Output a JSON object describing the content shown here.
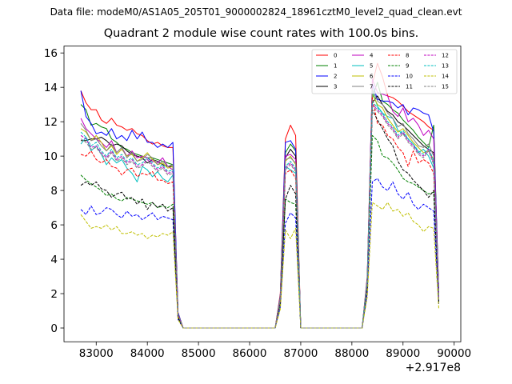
{
  "suptitle": "Data file: modeM0/AS1A05_205T01_9000002824_18961cztM0_level2_quad_clean.evt",
  "chart_data": {
    "type": "line",
    "title": "Quadrant 2 module wise count rates with 100.0s bins.",
    "xlabel": "",
    "ylabel": "",
    "x_offset_label": "+2.917e8",
    "xlim": [
      82370,
      90130
    ],
    "ylim": [
      -0.8,
      16.4
    ],
    "xticks": [
      83000,
      84000,
      85000,
      86000,
      87000,
      88000,
      89000,
      90000
    ],
    "yticks": [
      0,
      2,
      4,
      6,
      8,
      10,
      12,
      14,
      16
    ],
    "legend_position": "top-right",
    "x": [
      82700,
      82800,
      82900,
      83000,
      83100,
      83200,
      83300,
      83400,
      83500,
      83600,
      83700,
      83800,
      83900,
      84000,
      84100,
      84200,
      84300,
      84400,
      84500,
      84600,
      84700,
      86500,
      86600,
      86700,
      86800,
      86900,
      87000,
      87100,
      88200,
      88300,
      88400,
      88500,
      88600,
      88700,
      88800,
      88900,
      89000,
      89100,
      89200,
      89300,
      89400,
      89500,
      89600,
      89700
    ],
    "series": [
      {
        "name": "0",
        "color": "#ff0000",
        "dash": "solid",
        "values": [
          13.8,
          13.1,
          12.7,
          12.7,
          12.1,
          11.9,
          12.2,
          11.8,
          11.7,
          11.5,
          11.6,
          11.3,
          11.2,
          10.9,
          10.7,
          10.8,
          10.6,
          10.5,
          10.5,
          0.9,
          0.0,
          0.0,
          2.0,
          11.0,
          11.8,
          11.2,
          0.0,
          0.0,
          0.0,
          3.0,
          14.2,
          15.4,
          14.6,
          13.5,
          13.4,
          13.2,
          12.9,
          12.6,
          12.4,
          12.2,
          12.0,
          11.7,
          11.5,
          2.0
        ]
      },
      {
        "name": "1",
        "color": "#008000",
        "dash": "solid",
        "values": [
          13.0,
          12.7,
          11.8,
          11.9,
          11.7,
          11.6,
          11.0,
          10.8,
          10.5,
          10.4,
          10.2,
          10.1,
          10.0,
          9.9,
          9.9,
          9.8,
          9.7,
          9.6,
          9.5,
          0.8,
          0.0,
          0.0,
          1.8,
          10.2,
          10.7,
          10.3,
          0.0,
          0.0,
          0.0,
          2.8,
          13.4,
          14.3,
          13.2,
          13.0,
          12.7,
          12.5,
          12.1,
          11.8,
          11.5,
          11.1,
          10.8,
          10.5,
          11.8,
          1.9
        ]
      },
      {
        "name": "2",
        "color": "#0000ff",
        "dash": "solid",
        "values": [
          13.8,
          12.3,
          11.9,
          11.3,
          11.4,
          11.2,
          11.6,
          11.0,
          11.2,
          10.9,
          11.5,
          11.0,
          11.4,
          10.8,
          10.8,
          10.5,
          10.7,
          10.5,
          10.8,
          0.9,
          0.0,
          0.0,
          1.9,
          10.8,
          10.9,
          10.4,
          0.0,
          0.0,
          0.0,
          2.9,
          14.2,
          13.3,
          13.2,
          13.2,
          13.1,
          12.8,
          13.0,
          12.4,
          12.8,
          12.7,
          12.5,
          12.4,
          11.4,
          2.0
        ]
      },
      {
        "name": "3",
        "color": "#000000",
        "dash": "solid",
        "values": [
          10.9,
          10.9,
          11.0,
          11.0,
          11.1,
          10.9,
          10.6,
          10.7,
          10.6,
          10.3,
          10.1,
          10.0,
          9.9,
          9.6,
          9.8,
          9.7,
          9.5,
          9.4,
          9.4,
          0.8,
          0.0,
          0.0,
          1.8,
          9.9,
          10.4,
          10.0,
          0.0,
          0.0,
          0.0,
          2.7,
          13.1,
          13.5,
          13.0,
          12.6,
          12.4,
          12.0,
          11.8,
          11.5,
          11.2,
          10.9,
          10.6,
          10.4,
          10.2,
          1.8
        ]
      },
      {
        "name": "4",
        "color": "#bf00bf",
        "dash": "solid",
        "values": [
          12.2,
          11.6,
          11.3,
          11.0,
          10.8,
          10.5,
          10.9,
          10.2,
          10.5,
          10.0,
          10.3,
          9.9,
          10.0,
          9.9,
          9.7,
          9.6,
          9.9,
          9.4,
          9.2,
          0.8,
          0.0,
          0.0,
          1.8,
          10.0,
          10.1,
          9.8,
          0.0,
          0.0,
          0.0,
          2.8,
          14.5,
          13.7,
          13.6,
          13.5,
          12.6,
          12.3,
          12.8,
          12.0,
          12.2,
          11.8,
          11.2,
          11.5,
          11.0,
          1.9
        ]
      },
      {
        "name": "5",
        "color": "#00bfbf",
        "dash": "solid",
        "values": [
          10.7,
          11.1,
          10.3,
          10.6,
          10.1,
          9.5,
          9.9,
          9.6,
          9.8,
          9.3,
          9.0,
          8.5,
          9.4,
          9.2,
          8.8,
          9.1,
          8.7,
          8.5,
          8.9,
          0.7,
          0.0,
          0.0,
          1.7,
          9.4,
          9.2,
          9.0,
          0.0,
          0.0,
          0.0,
          2.6,
          13.8,
          12.9,
          12.5,
          12.3,
          12.2,
          11.5,
          11.3,
          11.0,
          10.7,
          10.2,
          10.4,
          10.0,
          9.3,
          1.7
        ]
      },
      {
        "name": "6",
        "color": "#bfbf00",
        "dash": "solid",
        "values": [
          11.6,
          11.4,
          10.9,
          11.2,
          10.8,
          10.3,
          10.6,
          10.1,
          10.4,
          10.0,
          10.1,
          9.7,
          9.9,
          10.2,
          9.8,
          9.5,
          9.6,
          9.3,
          9.4,
          0.8,
          0.0,
          0.0,
          1.8,
          9.7,
          10.0,
          9.5,
          0.0,
          0.0,
          0.0,
          2.8,
          13.6,
          13.0,
          12.8,
          12.2,
          11.8,
          11.4,
          11.6,
          11.2,
          10.8,
          10.5,
          10.2,
          10.3,
          9.8,
          1.8
        ]
      },
      {
        "name": "7",
        "color": "#808080",
        "dash": "solid",
        "values": [
          11.9,
          11.5,
          10.9,
          11.0,
          10.6,
          10.3,
          10.7,
          10.2,
          10.5,
          9.9,
          10.2,
          9.7,
          9.8,
          10.1,
          9.9,
          9.5,
          9.7,
          9.4,
          9.5,
          0.8,
          0.0,
          0.0,
          1.8,
          9.8,
          9.9,
          9.6,
          0.0,
          0.0,
          0.0,
          2.8,
          13.9,
          13.2,
          13.0,
          12.5,
          12.2,
          11.7,
          11.9,
          11.3,
          11.0,
          10.6,
          10.5,
          10.7,
          10.0,
          1.8
        ]
      },
      {
        "name": "8",
        "color": "#ff0000",
        "dash": "dashed",
        "values": [
          10.1,
          10.0,
          10.3,
          9.8,
          9.6,
          9.8,
          9.4,
          9.3,
          8.9,
          9.2,
          9.3,
          8.8,
          9.0,
          8.9,
          9.1,
          8.6,
          8.6,
          8.4,
          8.5,
          0.7,
          0.0,
          0.0,
          1.6,
          9.0,
          9.2,
          8.7,
          0.0,
          0.0,
          0.0,
          2.5,
          13.4,
          11.9,
          11.8,
          11.2,
          11.0,
          10.5,
          10.2,
          9.4,
          10.3,
          9.6,
          9.8,
          9.6,
          9.0,
          1.6
        ]
      },
      {
        "name": "9",
        "color": "#008000",
        "dash": "dashed",
        "values": [
          8.9,
          8.6,
          8.4,
          8.2,
          8.0,
          7.7,
          7.8,
          7.5,
          7.4,
          7.6,
          7.5,
          7.4,
          7.3,
          7.2,
          7.3,
          7.0,
          7.1,
          7.0,
          7.2,
          0.6,
          0.0,
          0.0,
          1.4,
          7.5,
          7.3,
          7.2,
          0.0,
          0.0,
          0.0,
          2.3,
          11.2,
          10.9,
          10.0,
          9.9,
          9.6,
          9.2,
          8.7,
          8.5,
          8.4,
          8.2,
          8.0,
          7.8,
          7.9,
          1.5
        ]
      },
      {
        "name": "10",
        "color": "#0000ff",
        "dash": "dashed",
        "values": [
          6.9,
          6.6,
          7.1,
          6.6,
          6.7,
          7.0,
          6.9,
          6.6,
          6.4,
          6.8,
          6.5,
          6.6,
          6.3,
          6.5,
          6.7,
          6.3,
          6.5,
          6.4,
          6.3,
          0.5,
          0.0,
          0.0,
          1.2,
          6.1,
          6.7,
          6.4,
          0.0,
          0.0,
          0.0,
          2.0,
          8.5,
          8.7,
          8.2,
          8.0,
          8.5,
          7.8,
          7.5,
          7.9,
          7.2,
          6.9,
          7.2,
          7.0,
          6.8,
          1.4
        ]
      },
      {
        "name": "11",
        "color": "#000000",
        "dash": "dashed",
        "values": [
          8.3,
          8.5,
          8.3,
          8.5,
          8.1,
          8.0,
          7.6,
          7.8,
          7.9,
          7.5,
          7.6,
          7.2,
          7.5,
          6.9,
          7.3,
          7.0,
          7.2,
          6.8,
          7.0,
          0.6,
          0.0,
          0.0,
          1.5,
          7.5,
          8.3,
          7.8,
          0.0,
          0.0,
          0.0,
          2.3,
          12.7,
          12.1,
          11.6,
          11.0,
          10.6,
          9.7,
          9.2,
          9.0,
          8.6,
          8.3,
          8.0,
          7.6,
          8.0,
          1.5
        ]
      },
      {
        "name": "12",
        "color": "#bf00bf",
        "dash": "dashed",
        "values": [
          11.2,
          11.0,
          10.5,
          10.6,
          10.2,
          9.9,
          10.3,
          9.8,
          10.0,
          9.6,
          9.8,
          9.4,
          9.5,
          9.8,
          9.5,
          9.2,
          9.4,
          9.0,
          9.1,
          0.8,
          0.0,
          0.0,
          1.7,
          9.3,
          9.6,
          9.2,
          0.0,
          0.0,
          0.0,
          2.7,
          13.0,
          12.7,
          12.4,
          11.9,
          11.6,
          11.1,
          11.4,
          10.9,
          10.6,
          10.2,
          10.0,
          10.4,
          9.6,
          1.7
        ]
      },
      {
        "name": "13",
        "color": "#00bfbf",
        "dash": "dashed",
        "values": [
          11.4,
          11.1,
          10.6,
          10.8,
          10.3,
          10.0,
          10.4,
          9.9,
          10.1,
          9.7,
          9.9,
          9.5,
          9.6,
          9.9,
          9.6,
          9.3,
          9.5,
          9.1,
          9.2,
          0.8,
          0.0,
          0.0,
          1.7,
          9.4,
          9.7,
          9.3,
          0.0,
          0.0,
          0.0,
          2.7,
          13.2,
          12.8,
          12.5,
          12.0,
          11.7,
          11.2,
          11.5,
          11.0,
          10.7,
          10.3,
          10.1,
          10.5,
          9.7,
          1.7
        ]
      },
      {
        "name": "14",
        "color": "#bfbf00",
        "dash": "dashed",
        "values": [
          6.6,
          6.2,
          5.8,
          5.9,
          5.8,
          6.0,
          5.7,
          5.9,
          5.5,
          5.5,
          5.6,
          5.4,
          5.5,
          5.2,
          5.4,
          5.3,
          5.5,
          5.4,
          5.6,
          0.5,
          0.0,
          0.0,
          1.1,
          5.7,
          5.2,
          5.8,
          0.0,
          0.0,
          0.0,
          1.8,
          7.3,
          7.1,
          6.9,
          7.3,
          6.8,
          6.9,
          6.5,
          6.7,
          6.2,
          6.0,
          5.6,
          5.9,
          5.8,
          1.1
        ]
      },
      {
        "name": "15",
        "color": "#808080",
        "dash": "dashed",
        "values": [
          11.0,
          10.8,
          10.4,
          10.5,
          10.1,
          9.8,
          10.2,
          9.7,
          9.9,
          9.5,
          9.7,
          9.3,
          9.4,
          9.7,
          9.4,
          9.1,
          9.3,
          8.9,
          9.0,
          0.8,
          0.0,
          0.0,
          1.7,
          9.2,
          9.5,
          9.1,
          0.0,
          0.0,
          0.0,
          2.6,
          12.9,
          12.6,
          12.3,
          11.8,
          11.5,
          11.0,
          11.3,
          10.8,
          10.5,
          10.1,
          9.9,
          10.3,
          9.5,
          1.7
        ]
      }
    ]
  }
}
